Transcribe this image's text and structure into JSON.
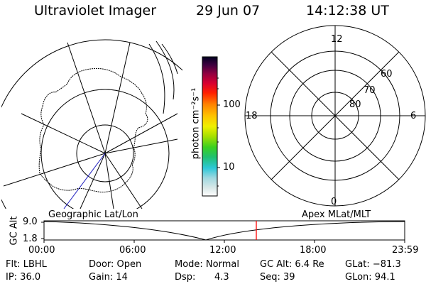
{
  "header": {
    "title": "Ultraviolet Imager",
    "date": "29 Jun 07",
    "time": "14:12:38 UT"
  },
  "colorbar": {
    "unit_label": "photon cm⁻²s⁻¹",
    "ticks": [
      "100",
      "10"
    ]
  },
  "polar": {
    "mlt_labels": [
      "12",
      "18",
      "6",
      "0"
    ],
    "lat_labels": [
      "60",
      "70",
      "80"
    ]
  },
  "timeline": {
    "left_label": "Geographic Lat/Lon",
    "right_label": "Apex MLat/MLT",
    "axis_title": "GC Alt",
    "y_ticks": [
      "9.0",
      "1.8"
    ],
    "x_ticks": [
      "00:00",
      "06:00",
      "12:00",
      "18:00",
      "23:59"
    ],
    "current_marker_color": "#ff0000"
  },
  "info": {
    "row1": {
      "filter": "Flt: LBHL",
      "door": "Door: Open",
      "mode": "Mode: Normal",
      "gc_alt": "GC Alt: 6.4 Re",
      "glat": "GLat: −81.3"
    },
    "row2": {
      "ip": "IP: 36.0",
      "gain": "Gain: 14",
      "dsp_label": "Dsp:",
      "dsp_value": "4.3",
      "seq": "Seq: 39",
      "glon": "GLon: 94.1"
    }
  }
}
